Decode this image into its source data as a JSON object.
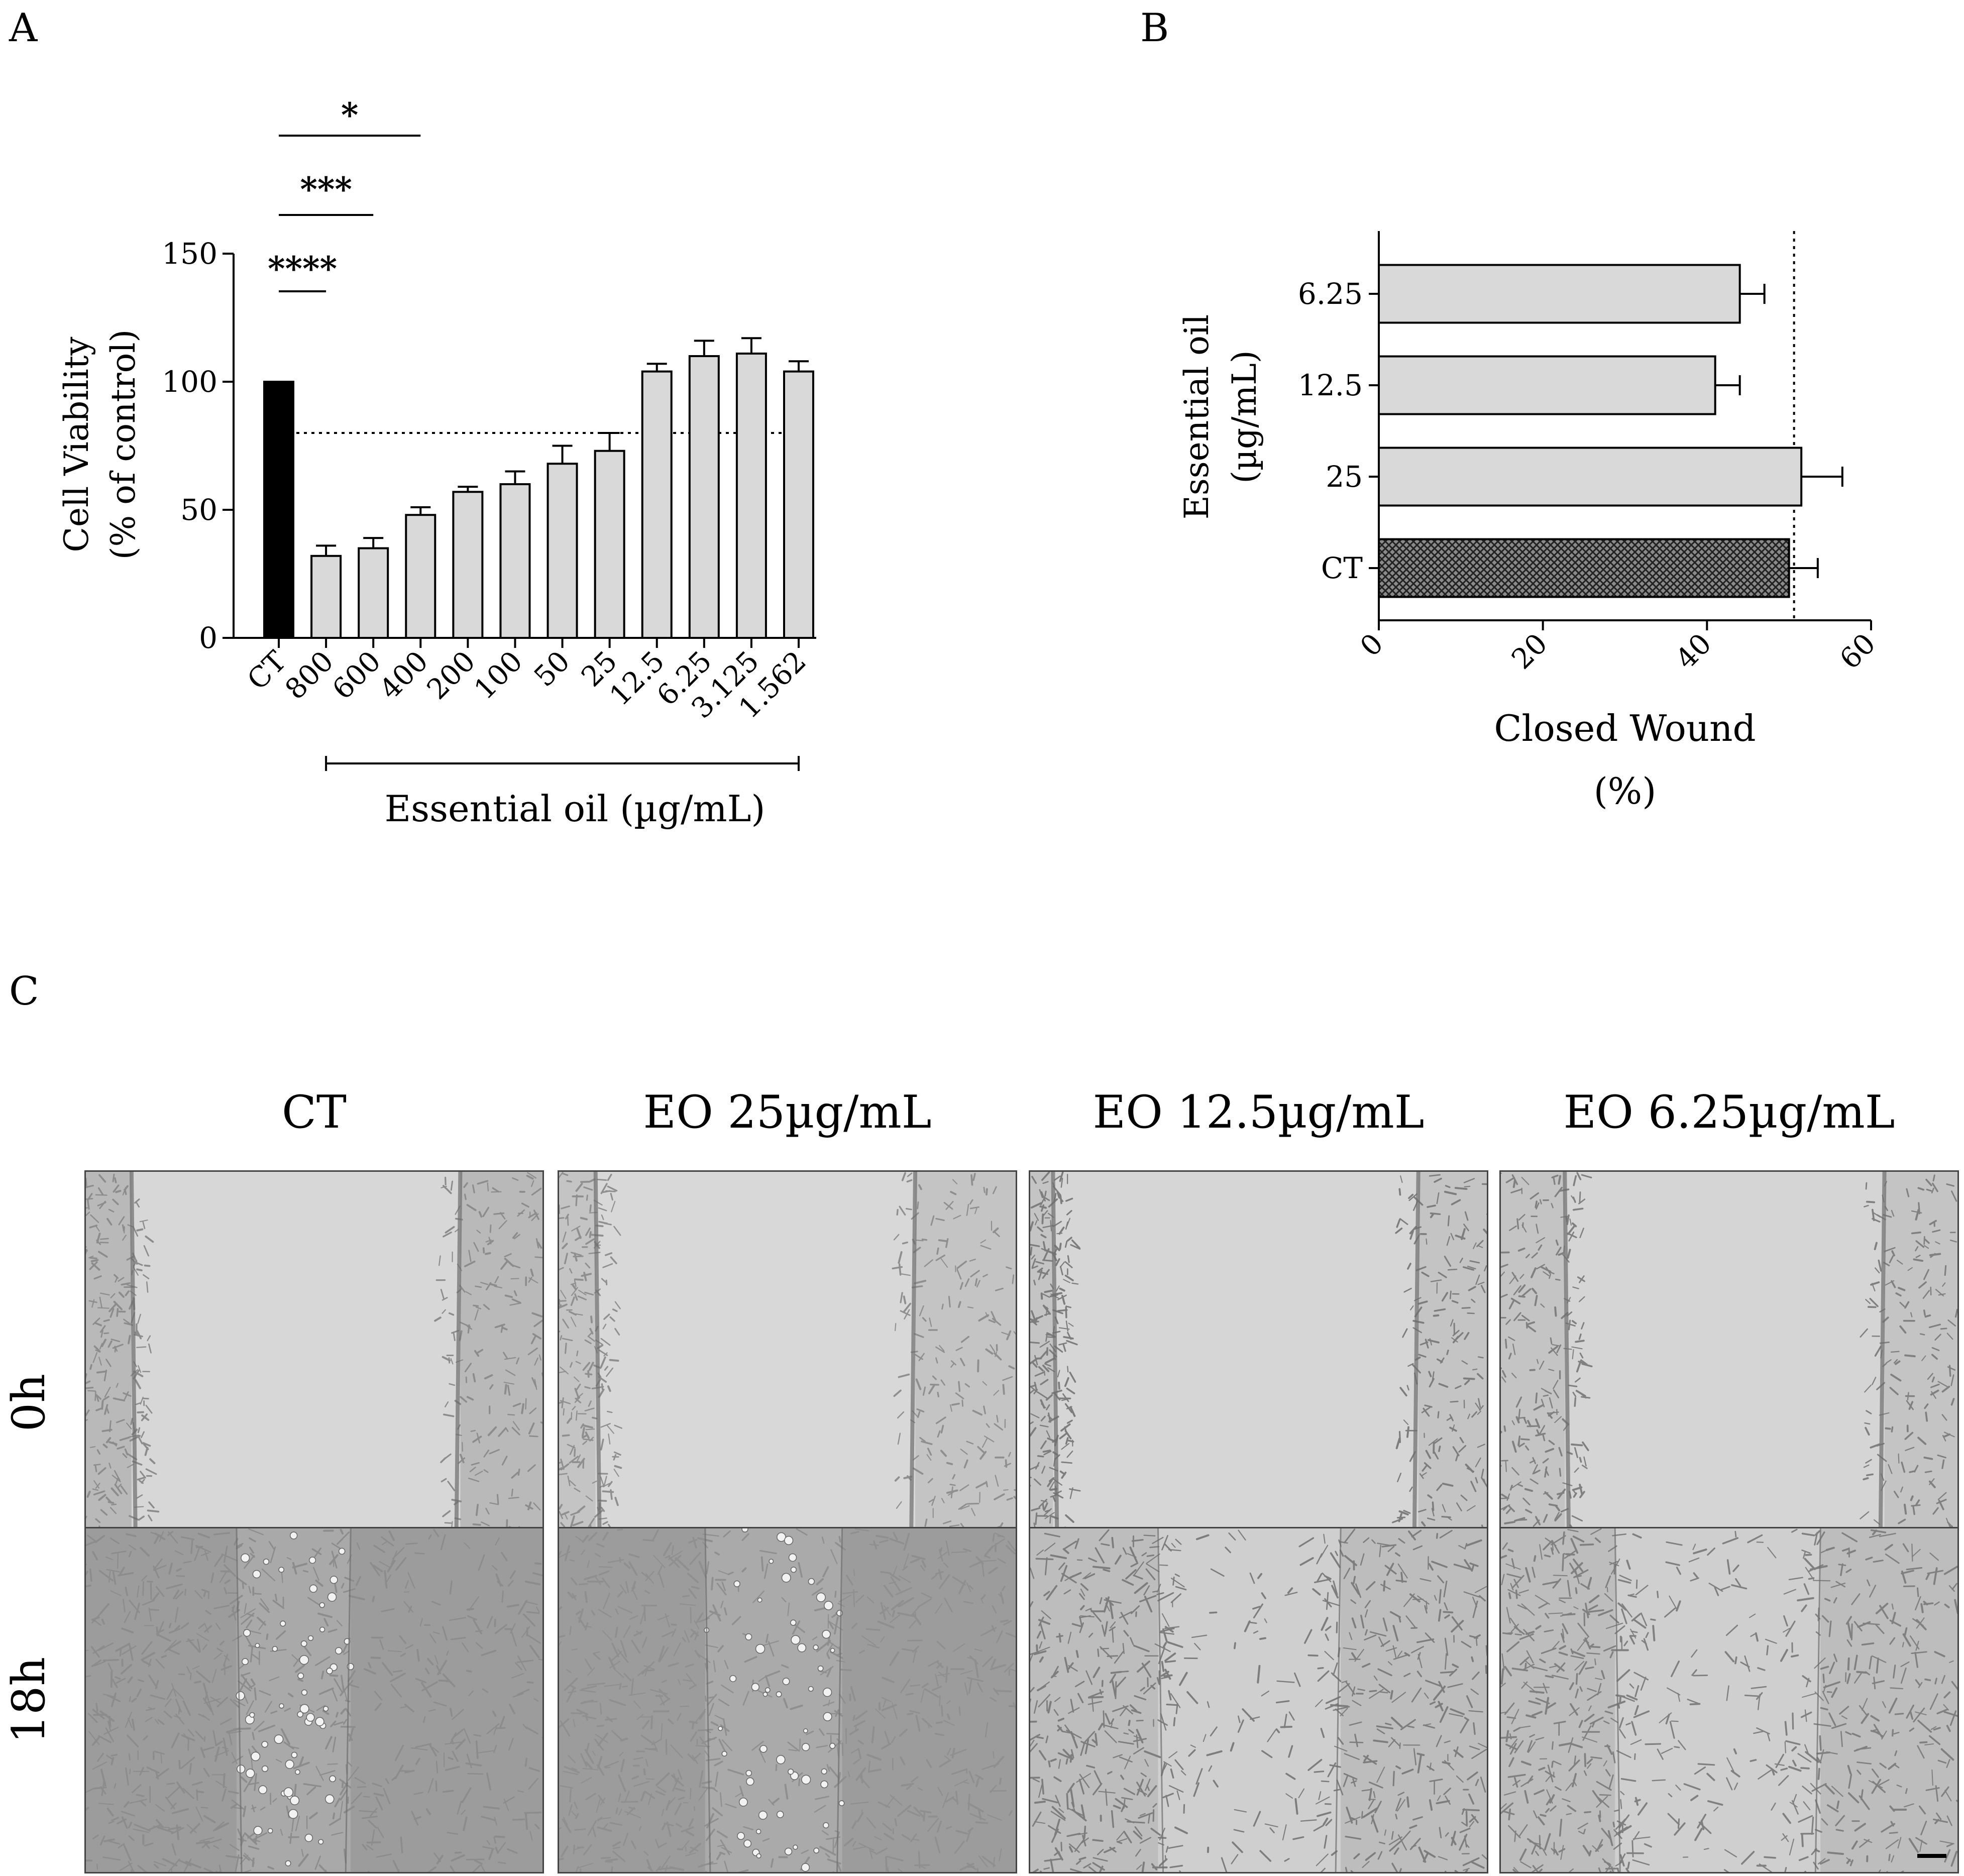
{
  "panel_labels": {
    "a": "A",
    "b": "B",
    "c": "C"
  },
  "chart_data": [
    {
      "type": "bar",
      "panel": "A",
      "categories": [
        "CT",
        "800",
        "600",
        "400",
        "200",
        "100",
        "50",
        "25",
        "12.5",
        "6.25",
        "3.125",
        "1.562"
      ],
      "values": [
        100,
        32,
        35,
        48,
        57,
        60,
        68,
        73,
        104,
        110,
        111,
        104
      ],
      "errors": [
        0,
        4,
        4,
        3,
        2,
        5,
        7,
        7,
        3,
        6,
        6,
        4
      ],
      "bar_colors": [
        "#000000",
        "#d9d9d9",
        "#d9d9d9",
        "#d9d9d9",
        "#d9d9d9",
        "#d9d9d9",
        "#d9d9d9",
        "#d9d9d9",
        "#d9d9d9",
        "#d9d9d9",
        "#d9d9d9",
        "#d9d9d9"
      ],
      "ylabel_line1": "Cell Viability",
      "ylabel_line2": "(% of control)",
      "xlabel": "Essential oil (µg/mL)",
      "ylim": [
        0,
        150
      ],
      "yticks": [
        0,
        50,
        100,
        150
      ],
      "reference_line": 80,
      "significance": [
        {
          "label": "*",
          "from": "CT",
          "to": "400"
        },
        {
          "label": "***",
          "from": "CT",
          "to": "600"
        },
        {
          "label": "****",
          "from": "CT",
          "to": "800"
        }
      ]
    },
    {
      "type": "bar",
      "orientation": "horizontal",
      "panel": "B",
      "categories": [
        "6.25",
        "12.5",
        "25",
        "CT"
      ],
      "values": [
        44,
        41,
        51.5,
        50
      ],
      "errors": [
        3,
        3,
        5,
        3.5
      ],
      "bar_colors": [
        "#d9d9d9",
        "#d9d9d9",
        "#d9d9d9",
        "#4a4a4a"
      ],
      "ylabel_line1": "Essential oil",
      "ylabel_line2": "(µg/mL)",
      "xlabel_line1": "Closed Wound",
      "xlabel_line2": "(%)",
      "xlim": [
        0,
        60
      ],
      "xticks": [
        0,
        20,
        40,
        60
      ],
      "reference_line": 50
    }
  ],
  "micrographs": {
    "columns": [
      "CT",
      "EO 25µg/mL",
      "EO 12.5µg/mL",
      "EO 6.25µg/mL"
    ],
    "rows": [
      "0h",
      "18h"
    ]
  }
}
